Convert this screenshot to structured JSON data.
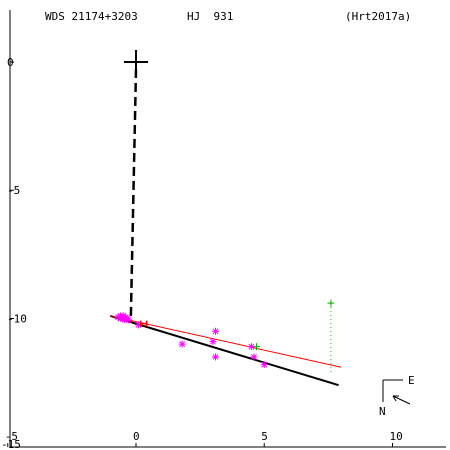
{
  "header": {
    "wds": "WDS 21174+3203",
    "name": "HJ  931",
    "reference": "(Hrt2017a)"
  },
  "compass": {
    "east_label": "E",
    "north_label": "N"
  },
  "colors": {
    "axes": "#000000",
    "orbit": "#000000",
    "fit": "#ff0000",
    "observations": "#ff00ff",
    "predicted": "#00aa00",
    "residual": "#00aa00",
    "current": "#ff0000",
    "primary": "#000000"
  },
  "chart_data": {
    "type": "scatter",
    "title": "",
    "xlabel": "",
    "ylabel": "",
    "xlim": [
      -5,
      12
    ],
    "ylim": [
      -15,
      2
    ],
    "x_ticks": [
      -5,
      0,
      5,
      10
    ],
    "y_ticks": [
      0,
      -5,
      -10
    ],
    "y_tick_labels": [
      "0",
      "-5",
      "-10"
    ],
    "x_tick_labels": [
      "-5",
      "0",
      "5",
      "10"
    ],
    "corner_y_label": "-15",
    "grid": false,
    "primary_star": [
      0,
      0
    ],
    "connector_line": [
      [
        -0.2,
        -9.9
      ],
      [
        0,
        -0.3
      ]
    ],
    "orbit_line": [
      [
        -1.0,
        -9.9
      ],
      [
        7.9,
        -12.6
      ]
    ],
    "fit_line": [
      [
        -1.0,
        -9.9
      ],
      [
        8.0,
        -11.9
      ]
    ],
    "observations": [
      [
        -0.6,
        -9.9
      ],
      [
        -0.55,
        -9.95
      ],
      [
        -0.5,
        -10.0
      ],
      [
        -0.45,
        -10.05
      ],
      [
        -0.6,
        -10.0
      ],
      [
        -0.5,
        -9.9
      ],
      [
        -0.4,
        -9.95
      ],
      [
        -0.7,
        -9.95
      ],
      [
        -0.35,
        -10.0
      ],
      [
        -0.3,
        -10.05
      ],
      [
        0.1,
        -10.25
      ],
      [
        1.8,
        -11.0
      ],
      [
        3.0,
        -10.9
      ],
      [
        3.1,
        -10.5
      ],
      [
        3.1,
        -11.5
      ],
      [
        4.5,
        -11.1
      ],
      [
        4.6,
        -11.5
      ],
      [
        5.0,
        -11.8
      ]
    ],
    "predicted_points": [
      [
        7.6,
        -9.4
      ],
      [
        4.7,
        -11.1
      ]
    ],
    "residual_line": [
      [
        7.6,
        -9.4
      ],
      [
        7.6,
        -12.1
      ]
    ],
    "current_position": [
      0.3,
      -10.2
    ]
  }
}
